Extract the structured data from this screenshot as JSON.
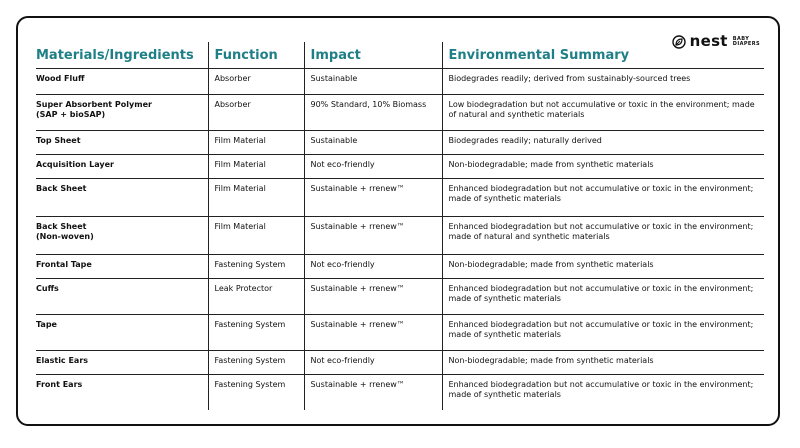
{
  "brand": {
    "name": "nest",
    "sub_line1": "BABY",
    "sub_line2": "DIAPERS"
  },
  "table": {
    "headers": [
      "Materials/Ingredients",
      "Function",
      "Impact",
      "Environmental Summary"
    ],
    "rows": [
      {
        "material": "Wood Fluff",
        "material_line2": "",
        "function": "Absorber",
        "impact": "Sustainable",
        "summary": "Biodegrades readily; derived from sustainably-sourced trees"
      },
      {
        "material": "Super Absorbent Polymer",
        "material_line2": "(SAP + bioSAP)",
        "function": "Absorber",
        "impact": "90% Standard, 10% Biomass",
        "summary": "Low biodegradation but not accumulative or toxic in the environment; made of natural and synthetic materials"
      },
      {
        "material": "Top Sheet",
        "material_line2": "",
        "function": "Film Material",
        "impact": "Sustainable",
        "summary": "Biodegrades readily; naturally derived"
      },
      {
        "material": "Acquisition Layer",
        "material_line2": "",
        "function": "Film Material",
        "impact": "Not eco-friendly",
        "summary": "Non-biodegradable; made from synthetic materials"
      },
      {
        "material": "Back Sheet",
        "material_line2": "",
        "function": "Film Material",
        "impact": "Sustainable + rrenew™",
        "summary": "Enhanced biodegradation but not accumulative or toxic in the environment; made of synthetic materials"
      },
      {
        "material": "Back Sheet",
        "material_line2": "(Non-woven)",
        "function": "Film Material",
        "impact": "Sustainable + rrenew™",
        "summary": "Enhanced biodegradation but not accumulative or toxic in the environment; made of natural and synthetic materials"
      },
      {
        "material": "Frontal Tape",
        "material_line2": "",
        "function": "Fastening System",
        "impact": "Not eco-friendly",
        "summary": "Non-biodegradable; made from synthetic materials"
      },
      {
        "material": "Cuffs",
        "material_line2": "",
        "function": "Leak Protector",
        "impact": "Sustainable + rrenew™",
        "summary": "Enhanced biodegradation but not accumulative or toxic in the environment; made of synthetic materials"
      },
      {
        "material": "Tape",
        "material_line2": "",
        "function": "Fastening System",
        "impact": "Sustainable + rrenew™",
        "summary": "Enhanced biodegradation but not accumulative or toxic in the environment; made of synthetic materials"
      },
      {
        "material": "Elastic Ears",
        "material_line2": "",
        "function": "Fastening System",
        "impact": "Not eco-friendly",
        "summary": "Non-biodegradable; made from synthetic materials"
      },
      {
        "material": "Front Ears",
        "material_line2": "",
        "function": "Fastening System",
        "impact": "Sustainable + rrenew™",
        "summary": "Enhanced biodegradation but not accumulative or toxic in the environment; made of synthetic materials"
      }
    ]
  },
  "colors": {
    "header_text": "#1f7f86",
    "border": "#111111"
  }
}
